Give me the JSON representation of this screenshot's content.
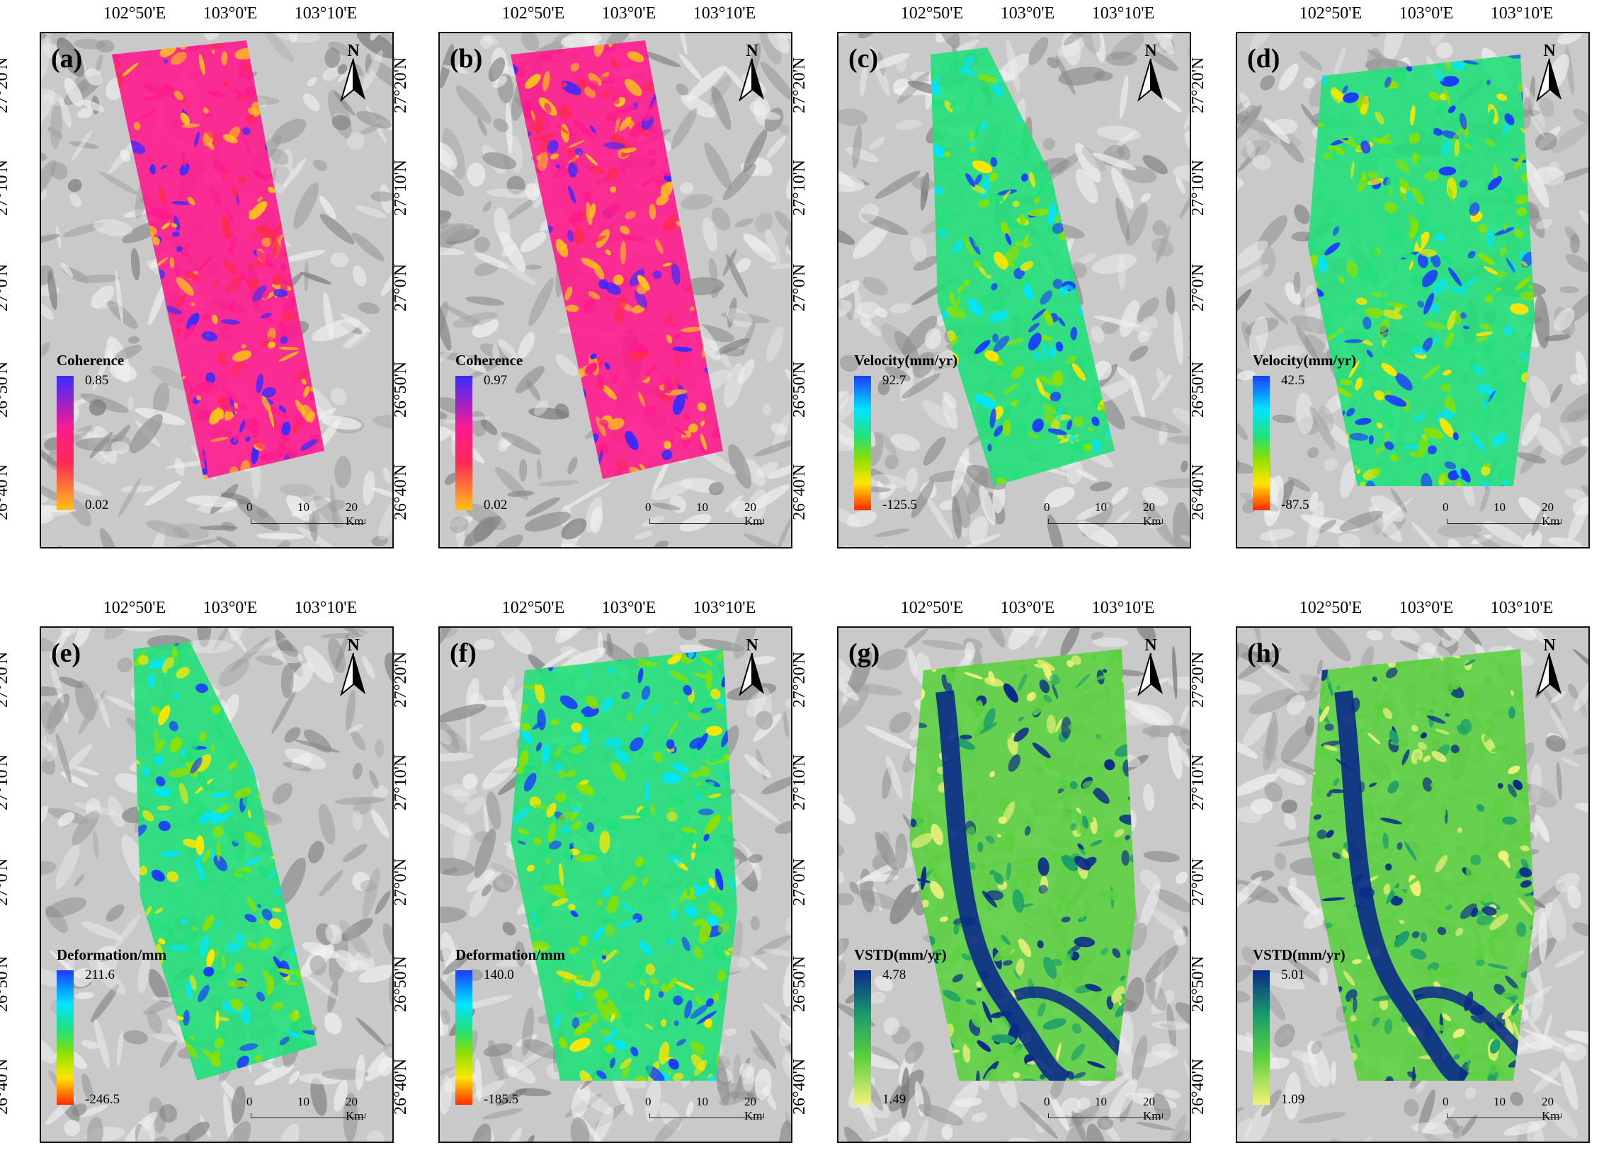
{
  "lon_labels": [
    "102°50'E",
    "103°0'E",
    "103°10'E"
  ],
  "lat_labels": [
    "27°20'N",
    "27°10'N",
    "27°0'N",
    "26°50'N",
    "26°40'N"
  ],
  "north_symbol": "N",
  "scale": {
    "zero": "0",
    "mid": "10",
    "end": "20 Km"
  },
  "icons": {
    "north_arrow": "north-arrow-icon"
  },
  "panels": [
    {
      "id": "(a)",
      "legend_title": "Coherence",
      "max": "0.85",
      "min": "0.02",
      "palette": "coh",
      "shape": "strip"
    },
    {
      "id": "(b)",
      "legend_title": "Coherence",
      "max": "0.97",
      "min": "0.02",
      "palette": "coh",
      "shape": "strip"
    },
    {
      "id": "(c)",
      "legend_title": "Velocity(mm/yr)",
      "max": "92.7",
      "min": "-125.5",
      "palette": "vel",
      "shape": "thin"
    },
    {
      "id": "(d)",
      "legend_title": "Velocity(mm/yr)",
      "max": "42.5",
      "min": "-87.5",
      "palette": "vel",
      "shape": "wide"
    },
    {
      "id": "(e)",
      "legend_title": "Deformation/mm",
      "max": "211.6",
      "min": "-246.5",
      "palette": "vel",
      "shape": "thin"
    },
    {
      "id": "(f)",
      "legend_title": "Deformation/mm",
      "max": "140.0",
      "min": "-185.5",
      "palette": "vel",
      "shape": "wide"
    },
    {
      "id": "(g)",
      "legend_title": "VSTD(mm/yr)",
      "max": "4.78",
      "min": "1.49",
      "palette": "std",
      "shape": "wide"
    },
    {
      "id": "(h)",
      "legend_title": "VSTD(mm/yr)",
      "max": "5.01",
      "min": "1.09",
      "palette": "std",
      "shape": "wide"
    }
  ],
  "colors": {
    "coh_top": "#3b2bff",
    "coh_mid": "#ff1a8c",
    "coh_low": "#ff2a55",
    "coh_bottom": "#ffc21a",
    "vel_top": "#1a3cff",
    "vel_c1": "#00e5ff",
    "vel_c2": "#22e07a",
    "vel_c3": "#8ee000",
    "vel_c4": "#ffe600",
    "vel_bottom": "#ff2a00",
    "std_top": "#0a2a8a",
    "std_mid": "#1ca06a",
    "std_c2": "#5cd040",
    "std_bottom": "#f2f27a",
    "hillshade": "#c9c9c9"
  }
}
